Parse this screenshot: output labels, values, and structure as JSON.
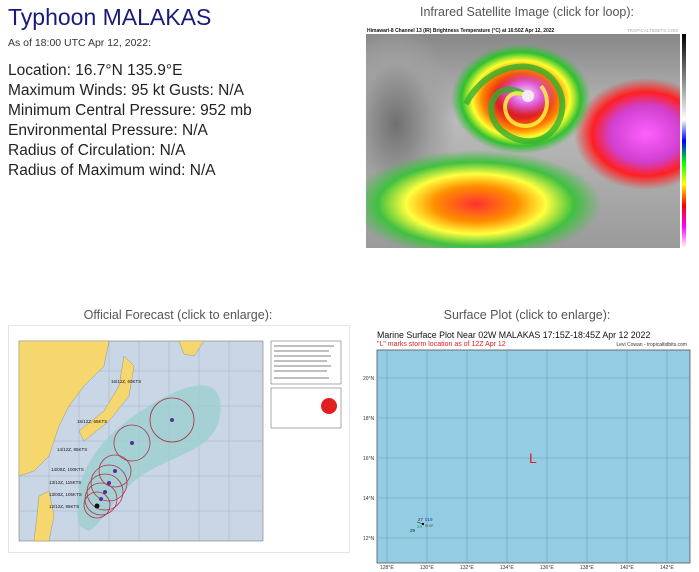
{
  "storm": {
    "title": "Typhoon MALAKAS",
    "as_of": "As of 18:00 UTC Apr 12, 2022:",
    "location": "Location: 16.7°N 135.9°E",
    "winds": "Maximum Winds: 95 kt  Gusts: N/A",
    "min_pressure": "Minimum Central Pressure: 952 mb",
    "env_pressure": "Environmental Pressure: N/A",
    "radius_circulation": "Radius of Circulation: N/A",
    "radius_max_wind": "Radius of Maximum wind: N/A"
  },
  "satellite": {
    "heading": "Infrared Satellite Image (click for loop):",
    "image_title": "Himawari-8 Channel 13 (IR) Brightness Temperature (°C) at 16:50Z Apr 12, 2022",
    "brand": "TROPICALTIDBITS.COM"
  },
  "forecast": {
    "heading": "Official Forecast (click to enlarge):",
    "points": [
      {
        "label": "16/12Z, 60KTS"
      },
      {
        "label": "15/12Z, 65KTS"
      },
      {
        "label": "14/12Z, 85KTS"
      },
      {
        "label": "14/00Z, 100KTS"
      },
      {
        "label": "13/12Z, 115KTS"
      },
      {
        "label": "13/00Z, 105KTS"
      },
      {
        "label": "12/12Z, 95KTS"
      }
    ],
    "colors": {
      "land": "#f5d76e",
      "sea": "#c9d6e6",
      "cone": "#9ccfcf",
      "wind_radii": "#b0304a"
    }
  },
  "surface": {
    "heading": "Surface Plot (click to enlarge):",
    "title": "Marine Surface Plot Near 02W MALAKAS 17:15Z-18:45Z Apr 12 2022",
    "subtitle": "\"L\" marks storm location as of 12Z Apr 12",
    "credit": "Levi Cowan - tropicaltidbits.com",
    "storm_marker": "L",
    "lat_labels": [
      "20°N",
      "18°N",
      "16°N",
      "14°N",
      "12°N"
    ],
    "lon_labels": [
      "128°E",
      "130°E",
      "132°E",
      "134°E",
      "136°E",
      "138°E",
      "140°E",
      "142°E"
    ],
    "obs": {
      "temp": "27",
      "dew": "24",
      "pressure": "019",
      "id": "SHIP",
      "other": "29"
    },
    "colors": {
      "ocean": "#93cce3",
      "marker": "#e02020"
    }
  }
}
